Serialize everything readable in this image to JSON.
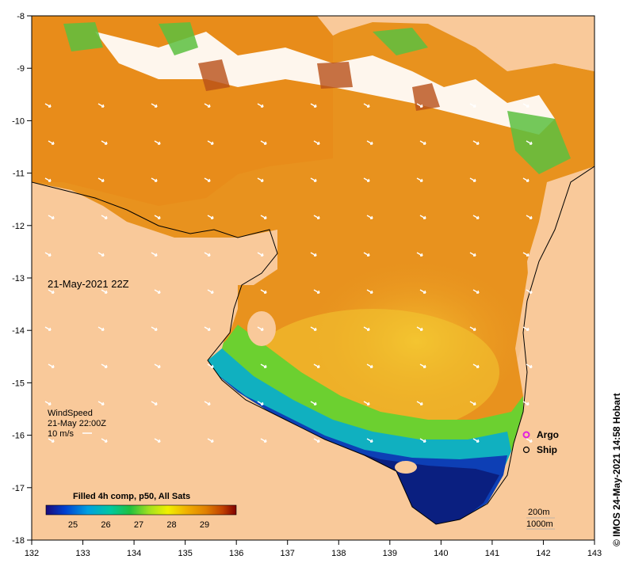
{
  "map": {
    "date_label": "21-May-2021 22Z",
    "credit": "© IMOS 24-May-2021 14:58 Hobart",
    "lon_ticks": [
      "132",
      "133",
      "134",
      "135",
      "136",
      "137",
      "138",
      "139",
      "140",
      "141",
      "142",
      "143"
    ],
    "lat_ticks": [
      "-8",
      "-9",
      "-10",
      "-11",
      "-12",
      "-13",
      "-14",
      "-15",
      "-16",
      "-17",
      "-18"
    ],
    "wind": {
      "title": "WindSpeed",
      "time": "21-May 22:00Z",
      "scale": "10 m/s"
    },
    "legend": {
      "argo": "Argo",
      "ship": "Ship",
      "argo_color": "#e020e0"
    },
    "contours": {
      "c200": "200m",
      "c1000": "1000m"
    },
    "colorbar": {
      "title": "Filled 4h comp, p50, All Sats",
      "ticks": [
        "25",
        "26",
        "27",
        "28",
        "29"
      ],
      "stops": [
        "#1a0a7a",
        "#0040d0",
        "#00a0e0",
        "#00c8a0",
        "#20c040",
        "#a0e020",
        "#f0f000",
        "#f0b000",
        "#e08000",
        "#c04000",
        "#800000"
      ]
    },
    "colors": {
      "land": "#f9c99a",
      "water_warm": "#e8921e",
      "water_mid": "#f0b428",
      "water_cool": "#1050d0",
      "cloud": "#ffffff"
    }
  }
}
